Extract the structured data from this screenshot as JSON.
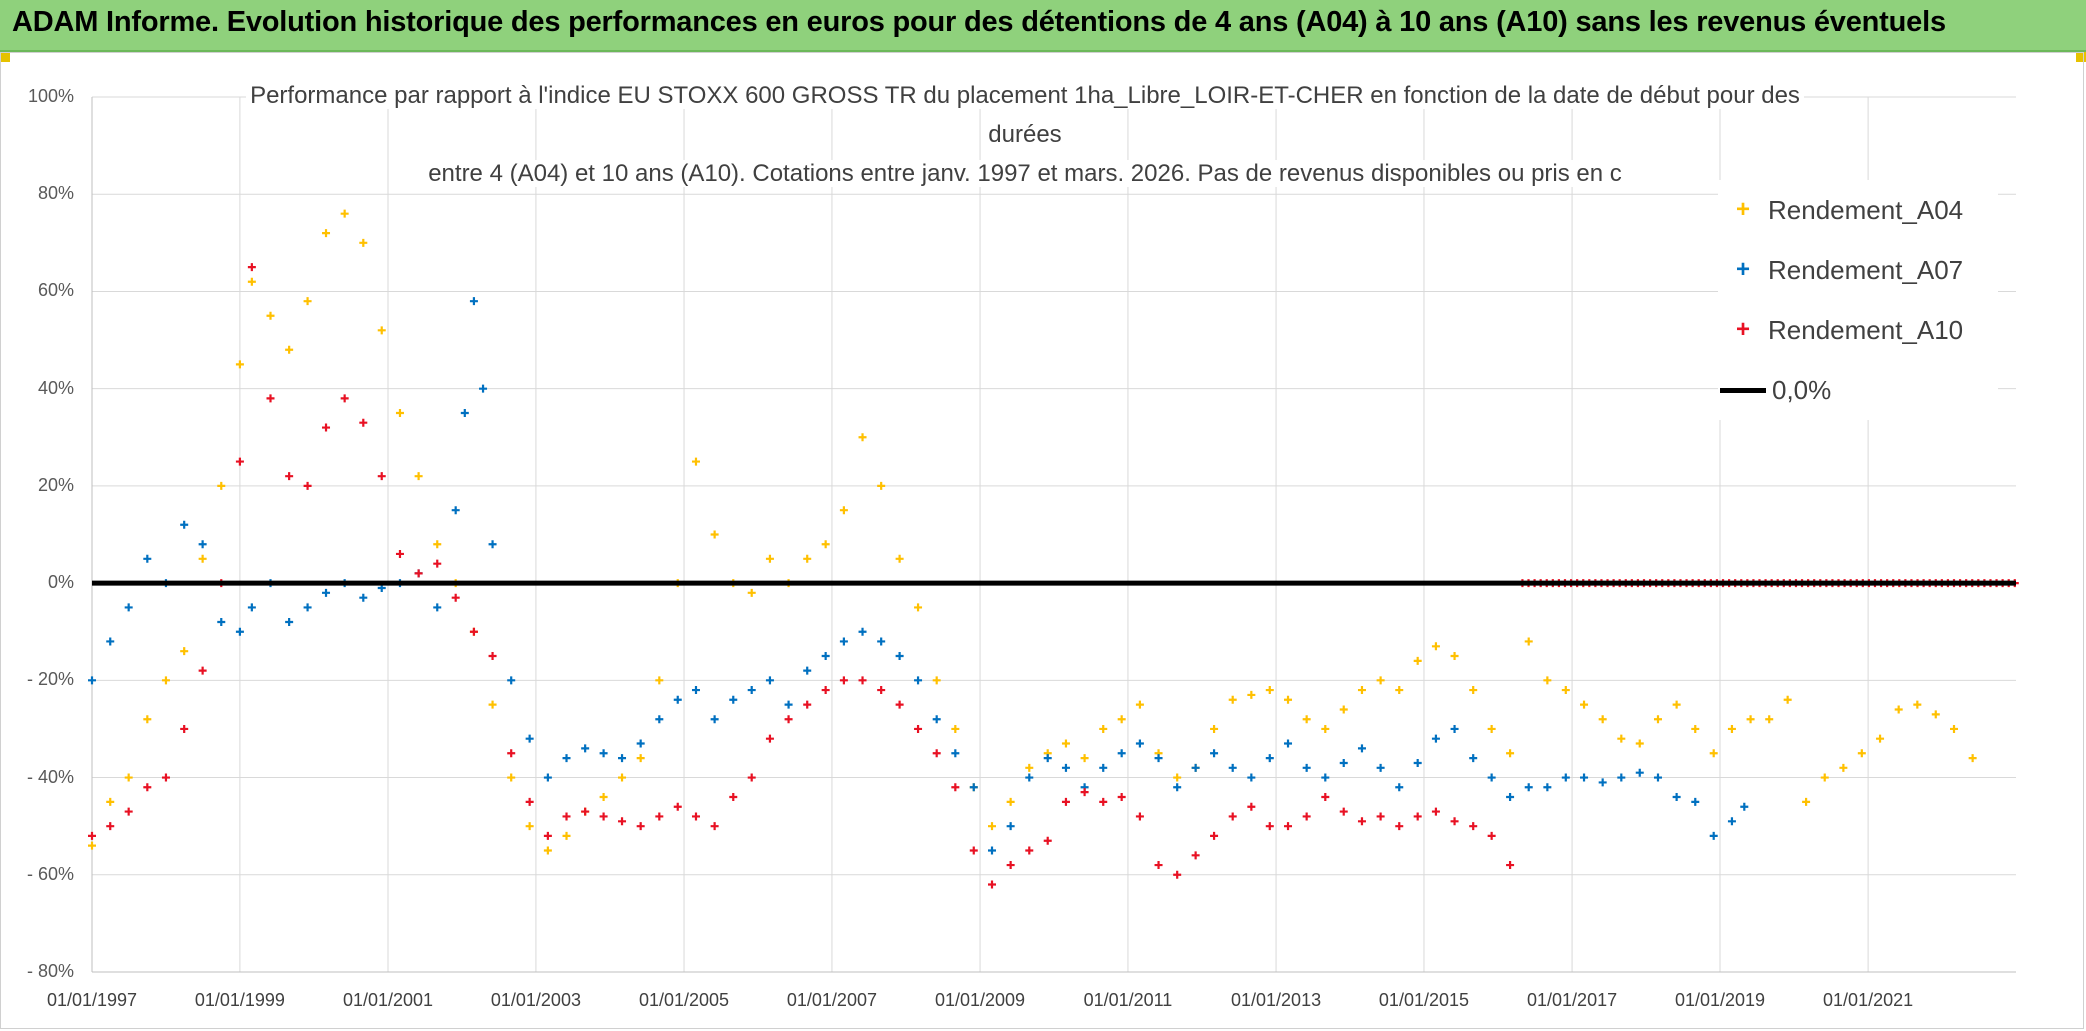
{
  "banner": {
    "title": "ADAM Informe. Evolution historique des performances en euros pour des détentions de 4 ans (A04) à 10 ans (A10) sans les revenus éventuels"
  },
  "chart_data": {
    "type": "scatter",
    "title_lines": [
      "Performance par rapport à l'indice EU STOXX 600 GROSS TR  du placement 1ha_Libre_LOIR-ET-CHER en fonction de la date de début pour des",
      "durées",
      "entre 4 (A04) et 10 ans (A10). Cotations entre janv. 1997 et mars. 2026. Pas de revenus disponibles ou pris en c"
    ],
    "ylim": [
      -80,
      100
    ],
    "yticks": [
      "100%",
      "80%",
      "60%",
      "40%",
      "20%",
      "0%",
      "- 20%",
      "- 40%",
      "- 60%",
      "- 80%"
    ],
    "xlim": [
      "1997-01-01",
      "2023-01-01"
    ],
    "xticks": [
      "01/01/1997",
      "01/01/1999",
      "01/01/2001",
      "01/01/2003",
      "01/01/2005",
      "01/01/2007",
      "01/01/2009",
      "01/01/2011",
      "01/01/2013",
      "01/01/2015",
      "01/01/2017",
      "01/01/2019",
      "01/01/2021"
    ],
    "grid": true,
    "legend_position": "right",
    "zero_line": {
      "name": "0,0%",
      "value": 0,
      "color": "#000000"
    },
    "series": [
      {
        "name": "Rendement_A04",
        "color": "#ffc000",
        "points": [
          [
            "1997-01-01",
            -54
          ],
          [
            "1997-04-01",
            -45
          ],
          [
            "1997-07-01",
            -40
          ],
          [
            "1997-10-01",
            -28
          ],
          [
            "1998-01-01",
            -20
          ],
          [
            "1998-04-01",
            -14
          ],
          [
            "1998-07-01",
            5
          ],
          [
            "1998-10-01",
            20
          ],
          [
            "1999-01-01",
            45
          ],
          [
            "1999-03-01",
            62
          ],
          [
            "1999-06-01",
            55
          ],
          [
            "1999-09-01",
            48
          ],
          [
            "1999-12-01",
            58
          ],
          [
            "2000-03-01",
            72
          ],
          [
            "2000-06-01",
            76
          ],
          [
            "2000-09-01",
            70
          ],
          [
            "2000-12-01",
            52
          ],
          [
            "2001-03-01",
            35
          ],
          [
            "2001-06-01",
            22
          ],
          [
            "2001-09-01",
            8
          ],
          [
            "2001-12-01",
            0
          ],
          [
            "2002-03-01",
            -10
          ],
          [
            "2002-06-01",
            -25
          ],
          [
            "2002-09-01",
            -40
          ],
          [
            "2002-12-01",
            -50
          ],
          [
            "2003-03-01",
            -55
          ],
          [
            "2003-06-01",
            -52
          ],
          [
            "2003-09-01",
            -47
          ],
          [
            "2003-12-01",
            -44
          ],
          [
            "2004-03-01",
            -40
          ],
          [
            "2004-06-01",
            -36
          ],
          [
            "2004-09-01",
            -20
          ],
          [
            "2004-12-01",
            0
          ],
          [
            "2005-03-01",
            25
          ],
          [
            "2005-06-01",
            10
          ],
          [
            "2005-09-01",
            0
          ],
          [
            "2005-12-01",
            -2
          ],
          [
            "2006-03-01",
            5
          ],
          [
            "2006-06-01",
            0
          ],
          [
            "2006-09-01",
            5
          ],
          [
            "2006-12-01",
            8
          ],
          [
            "2007-03-01",
            15
          ],
          [
            "2007-06-01",
            30
          ],
          [
            "2007-09-01",
            20
          ],
          [
            "2007-12-01",
            5
          ],
          [
            "2008-03-01",
            -5
          ],
          [
            "2008-06-01",
            -20
          ],
          [
            "2008-09-01",
            -30
          ],
          [
            "2008-12-01",
            -42
          ],
          [
            "2009-03-01",
            -50
          ],
          [
            "2009-06-01",
            -45
          ],
          [
            "2009-09-01",
            -38
          ],
          [
            "2009-12-01",
            -35
          ],
          [
            "2010-03-01",
            -33
          ],
          [
            "2010-06-01",
            -36
          ],
          [
            "2010-09-01",
            -30
          ],
          [
            "2010-12-01",
            -28
          ],
          [
            "2011-03-01",
            -25
          ],
          [
            "2011-06-01",
            -35
          ],
          [
            "2011-09-01",
            -40
          ],
          [
            "2011-12-01",
            -38
          ],
          [
            "2012-03-01",
            -30
          ],
          [
            "2012-06-01",
            -24
          ],
          [
            "2012-09-01",
            -23
          ],
          [
            "2012-12-01",
            -22
          ],
          [
            "2013-03-01",
            -24
          ],
          [
            "2013-06-01",
            -28
          ],
          [
            "2013-09-01",
            -30
          ],
          [
            "2013-12-01",
            -26
          ],
          [
            "2014-03-01",
            -22
          ],
          [
            "2014-06-01",
            -20
          ],
          [
            "2014-09-01",
            -22
          ],
          [
            "2014-12-01",
            -16
          ],
          [
            "2015-03-01",
            -13
          ],
          [
            "2015-06-01",
            -15
          ],
          [
            "2015-09-01",
            -22
          ],
          [
            "2015-12-01",
            -30
          ],
          [
            "2016-03-01",
            -35
          ],
          [
            "2016-06-01",
            -12
          ],
          [
            "2016-09-01",
            -20
          ],
          [
            "2016-12-01",
            -22
          ],
          [
            "2017-03-01",
            -25
          ],
          [
            "2017-06-01",
            -28
          ],
          [
            "2017-09-01",
            -32
          ],
          [
            "2017-12-01",
            -33
          ],
          [
            "2018-03-01",
            -28
          ],
          [
            "2018-06-01",
            -25
          ],
          [
            "2018-09-01",
            -30
          ],
          [
            "2018-12-01",
            -35
          ],
          [
            "2019-03-01",
            -30
          ],
          [
            "2019-06-01",
            -28
          ],
          [
            "2019-09-01",
            -28
          ],
          [
            "2019-12-01",
            -24
          ],
          [
            "2020-03-01",
            -45
          ],
          [
            "2020-06-01",
            -40
          ],
          [
            "2020-09-01",
            -38
          ],
          [
            "2020-12-01",
            -35
          ],
          [
            "2021-03-01",
            -32
          ],
          [
            "2021-06-01",
            -26
          ],
          [
            "2021-09-01",
            -25
          ],
          [
            "2021-12-01",
            -27
          ],
          [
            "2022-03-01",
            -30
          ],
          [
            "2022-06-01",
            -36
          ]
        ]
      },
      {
        "name": "Rendement_A07",
        "color": "#0070c0",
        "points": [
          [
            "1997-01-01",
            -20
          ],
          [
            "1997-04-01",
            -12
          ],
          [
            "1997-07-01",
            -5
          ],
          [
            "1997-10-01",
            5
          ],
          [
            "1998-01-01",
            0
          ],
          [
            "1998-04-01",
            12
          ],
          [
            "1998-07-01",
            8
          ],
          [
            "1998-10-01",
            -8
          ],
          [
            "1999-01-01",
            -10
          ],
          [
            "1999-03-01",
            -5
          ],
          [
            "1999-06-01",
            0
          ],
          [
            "1999-09-01",
            -8
          ],
          [
            "1999-12-01",
            -5
          ],
          [
            "2000-03-01",
            -2
          ],
          [
            "2000-06-01",
            0
          ],
          [
            "2000-09-01",
            -3
          ],
          [
            "2000-12-01",
            -1
          ],
          [
            "2001-03-01",
            0
          ],
          [
            "2001-06-01",
            2
          ],
          [
            "2001-09-01",
            -5
          ],
          [
            "2001-12-01",
            15
          ],
          [
            "2002-01-15",
            35
          ],
          [
            "2002-03-01",
            58
          ],
          [
            "2002-04-15",
            40
          ],
          [
            "2002-06-01",
            8
          ],
          [
            "2002-09-01",
            -20
          ],
          [
            "2002-12-01",
            -32
          ],
          [
            "2003-03-01",
            -40
          ],
          [
            "2003-06-01",
            -36
          ],
          [
            "2003-09-01",
            -34
          ],
          [
            "2003-12-01",
            -35
          ],
          [
            "2004-03-01",
            -36
          ],
          [
            "2004-06-01",
            -33
          ],
          [
            "2004-09-01",
            -28
          ],
          [
            "2004-12-01",
            -24
          ],
          [
            "2005-03-01",
            -22
          ],
          [
            "2005-06-01",
            -28
          ],
          [
            "2005-09-01",
            -24
          ],
          [
            "2005-12-01",
            -22
          ],
          [
            "2006-03-01",
            -20
          ],
          [
            "2006-06-01",
            -25
          ],
          [
            "2006-09-01",
            -18
          ],
          [
            "2006-12-01",
            -15
          ],
          [
            "2007-03-01",
            -12
          ],
          [
            "2007-06-01",
            -10
          ],
          [
            "2007-09-01",
            -12
          ],
          [
            "2007-12-01",
            -15
          ],
          [
            "2008-03-01",
            -20
          ],
          [
            "2008-06-01",
            -28
          ],
          [
            "2008-09-01",
            -35
          ],
          [
            "2008-12-01",
            -42
          ],
          [
            "2009-03-01",
            -55
          ],
          [
            "2009-06-01",
            -50
          ],
          [
            "2009-09-01",
            -40
          ],
          [
            "2009-12-01",
            -36
          ],
          [
            "2010-03-01",
            -38
          ],
          [
            "2010-06-01",
            -42
          ],
          [
            "2010-09-01",
            -38
          ],
          [
            "2010-12-01",
            -35
          ],
          [
            "2011-03-01",
            -33
          ],
          [
            "2011-06-01",
            -36
          ],
          [
            "2011-09-01",
            -42
          ],
          [
            "2011-12-01",
            -38
          ],
          [
            "2012-03-01",
            -35
          ],
          [
            "2012-06-01",
            -38
          ],
          [
            "2012-09-01",
            -40
          ],
          [
            "2012-12-01",
            -36
          ],
          [
            "2013-03-01",
            -33
          ],
          [
            "2013-06-01",
            -38
          ],
          [
            "2013-09-01",
            -40
          ],
          [
            "2013-12-01",
            -37
          ],
          [
            "2014-03-01",
            -34
          ],
          [
            "2014-06-01",
            -38
          ],
          [
            "2014-09-01",
            -42
          ],
          [
            "2014-12-01",
            -37
          ],
          [
            "2015-03-01",
            -32
          ],
          [
            "2015-06-01",
            -30
          ],
          [
            "2015-09-01",
            -36
          ],
          [
            "2015-12-01",
            -40
          ],
          [
            "2016-03-01",
            -44
          ],
          [
            "2016-06-01",
            -42
          ],
          [
            "2016-09-01",
            -42
          ],
          [
            "2016-12-01",
            -40
          ],
          [
            "2017-03-01",
            -40
          ],
          [
            "2017-06-01",
            -41
          ],
          [
            "2017-09-01",
            -40
          ],
          [
            "2017-12-01",
            -39
          ],
          [
            "2018-03-01",
            -40
          ],
          [
            "2018-06-01",
            -44
          ],
          [
            "2018-09-01",
            -45
          ],
          [
            "2018-12-01",
            -52
          ],
          [
            "2019-03-01",
            -49
          ],
          [
            "2019-05-01",
            -46
          ]
        ]
      },
      {
        "name": "Rendement_A10",
        "color": "#e81123",
        "points": [
          [
            "1997-01-01",
            -52
          ],
          [
            "1997-04-01",
            -50
          ],
          [
            "1997-07-01",
            -47
          ],
          [
            "1997-10-01",
            -42
          ],
          [
            "1998-01-01",
            -40
          ],
          [
            "1998-04-01",
            -30
          ],
          [
            "1998-07-01",
            -18
          ],
          [
            "1998-10-01",
            0
          ],
          [
            "1999-01-01",
            25
          ],
          [
            "1999-03-01",
            65
          ],
          [
            "1999-06-01",
            38
          ],
          [
            "1999-09-01",
            22
          ],
          [
            "1999-12-01",
            20
          ],
          [
            "2000-03-01",
            32
          ],
          [
            "2000-06-01",
            38
          ],
          [
            "2000-09-01",
            33
          ],
          [
            "2000-12-01",
            22
          ],
          [
            "2001-03-01",
            6
          ],
          [
            "2001-06-01",
            2
          ],
          [
            "2001-09-01",
            4
          ],
          [
            "2001-12-01",
            -3
          ],
          [
            "2002-03-01",
            -10
          ],
          [
            "2002-06-01",
            -15
          ],
          [
            "2002-09-01",
            -35
          ],
          [
            "2002-12-01",
            -45
          ],
          [
            "2003-03-01",
            -52
          ],
          [
            "2003-06-01",
            -48
          ],
          [
            "2003-09-01",
            -47
          ],
          [
            "2003-12-01",
            -48
          ],
          [
            "2004-03-01",
            -49
          ],
          [
            "2004-06-01",
            -50
          ],
          [
            "2004-09-01",
            -48
          ],
          [
            "2004-12-01",
            -46
          ],
          [
            "2005-03-01",
            -48
          ],
          [
            "2005-06-01",
            -50
          ],
          [
            "2005-09-01",
            -44
          ],
          [
            "2005-12-01",
            -40
          ],
          [
            "2006-03-01",
            -32
          ],
          [
            "2006-06-01",
            -28
          ],
          [
            "2006-09-01",
            -25
          ],
          [
            "2006-12-01",
            -22
          ],
          [
            "2007-03-01",
            -20
          ],
          [
            "2007-06-01",
            -20
          ],
          [
            "2007-09-01",
            -22
          ],
          [
            "2007-12-01",
            -25
          ],
          [
            "2008-03-01",
            -30
          ],
          [
            "2008-06-01",
            -35
          ],
          [
            "2008-09-01",
            -42
          ],
          [
            "2008-12-01",
            -55
          ],
          [
            "2009-03-01",
            -62
          ],
          [
            "2009-06-01",
            -58
          ],
          [
            "2009-09-01",
            -55
          ],
          [
            "2009-12-01",
            -53
          ],
          [
            "2010-03-01",
            -45
          ],
          [
            "2010-06-01",
            -43
          ],
          [
            "2010-09-01",
            -45
          ],
          [
            "2010-12-01",
            -44
          ],
          [
            "2011-03-01",
            -48
          ],
          [
            "2011-06-01",
            -58
          ],
          [
            "2011-09-01",
            -60
          ],
          [
            "2011-12-01",
            -56
          ],
          [
            "2012-03-01",
            -52
          ],
          [
            "2012-06-01",
            -48
          ],
          [
            "2012-09-01",
            -46
          ],
          [
            "2012-12-01",
            -50
          ],
          [
            "2013-03-01",
            -50
          ],
          [
            "2013-06-01",
            -48
          ],
          [
            "2013-09-01",
            -44
          ],
          [
            "2013-12-01",
            -47
          ],
          [
            "2014-03-01",
            -49
          ],
          [
            "2014-06-01",
            -48
          ],
          [
            "2014-09-01",
            -50
          ],
          [
            "2014-12-01",
            -48
          ],
          [
            "2015-03-01",
            -47
          ],
          [
            "2015-06-01",
            -49
          ],
          [
            "2015-09-01",
            -50
          ],
          [
            "2015-12-01",
            -52
          ],
          [
            "2016-03-01",
            -58
          ]
        ],
        "zero_run": [
          "2016-05-01",
          "2023-01-01"
        ]
      }
    ]
  }
}
